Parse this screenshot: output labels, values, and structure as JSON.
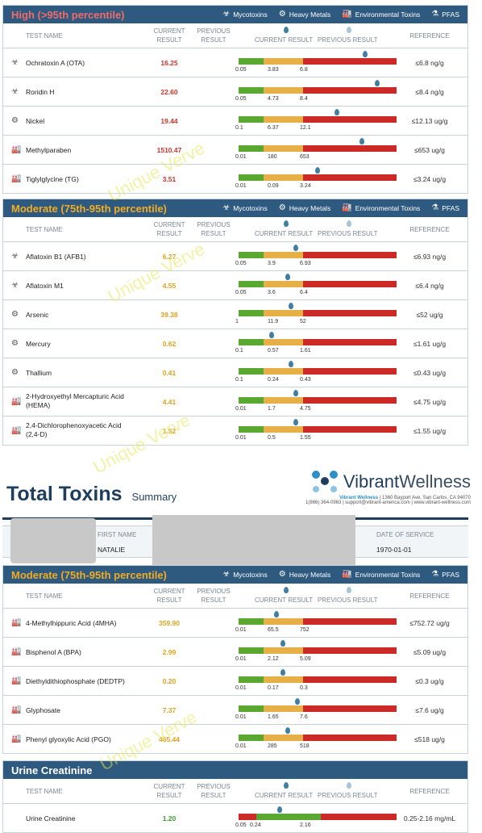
{
  "columns": {
    "test_name": "TEST NAME",
    "current_result_l1": "CURRENT",
    "current_result_l2": "RESULT",
    "previous_result_l1": "PREVIOUS",
    "previous_result_l2": "RESULT",
    "current_result": "CURRENT RESULT",
    "previous_result": "PREVIOUS RESULT",
    "reference": "REFERENCE"
  },
  "legend": {
    "mycotoxins": "Mycotoxins",
    "heavy_metals": "Heavy Metals",
    "environmental_toxins": "Environmental Toxins",
    "pfas": "PFAS"
  },
  "colors": {
    "band": "#2e5a80",
    "high_title": "#f05a5a",
    "moderate_title": "#f0a81c",
    "green": "#5aa832",
    "yellow": "#e6b046",
    "red": "#cc2a26",
    "marker": "#3f7fa3"
  },
  "watermark": "Unique Verve",
  "sections": {
    "high": {
      "title": "High (>95th percentile)",
      "rows": [
        {
          "icon": "biohazard-icon",
          "name": "Ochratoxin A (OTA)",
          "value": "16.25",
          "ticks": [
            "0.05",
            "3.83",
            "6.8"
          ],
          "reference": "≤6.8 ng/g"
        },
        {
          "icon": "biohazard-icon",
          "name": "Roridin H",
          "value": "22.60",
          "ticks": [
            "0.05",
            "4.73",
            "8.4"
          ],
          "reference": "≤8.4 ng/g"
        },
        {
          "icon": "metal-icon",
          "name": "Nickel",
          "value": "19.44",
          "ticks": [
            "0.1",
            "6.37",
            "12.1"
          ],
          "reference": "≤12.13 ug/g"
        },
        {
          "icon": "factory-icon",
          "name": "Methylparaben",
          "value": "1510.47",
          "ticks": [
            "0.01",
            "180",
            "653"
          ],
          "reference": "≤653 ug/g"
        },
        {
          "icon": "factory-icon",
          "name": "Tiglylglycine (TG)",
          "value": "3.51",
          "ticks": [
            "0.01",
            "0.09",
            "3.24"
          ],
          "reference": "≤3.24 ug/g"
        }
      ]
    },
    "moderate1": {
      "title": "Moderate (75th-95th percentile)",
      "rows": [
        {
          "icon": "biohazard-icon",
          "name": "Aflatoxin B1 (AFB1)",
          "value": "6.27",
          "ticks": [
            "0.05",
            "3.9",
            "6.93"
          ],
          "reference": "≤6.93 ng/g"
        },
        {
          "icon": "biohazard-icon",
          "name": "Aflatoxin M1",
          "value": "4.55",
          "ticks": [
            "0.05",
            "3.6",
            "6.4"
          ],
          "reference": "≤6.4 ng/g"
        },
        {
          "icon": "metal-icon",
          "name": "Arsenic",
          "value": "39.38",
          "ticks": [
            "1",
            "11.9",
            "52"
          ],
          "reference": "≤52 ug/g"
        },
        {
          "icon": "metal-icon",
          "name": "Mercury",
          "value": "0.62",
          "ticks": [
            "0.1",
            "0.57",
            "1.61"
          ],
          "reference": "≤1.61 ug/g"
        },
        {
          "icon": "metal-icon",
          "name": "Thallium",
          "value": "0.41",
          "ticks": [
            "0.1",
            "0.24",
            "0.43"
          ],
          "reference": "≤0.43 ug/g"
        },
        {
          "icon": "factory-icon",
          "name": "2-Hydroxyethyl Mercapturic Acid",
          "name2": "(HEMA)",
          "value": "4.41",
          "ticks": [
            "0.01",
            "1.7",
            "4.75"
          ],
          "reference": "≤4.75 ug/g"
        },
        {
          "icon": "factory-icon",
          "name": "2,4-Dichlorophenoxyacetic Acid",
          "name2": "(2,4-D)",
          "value": "1.52",
          "ticks": [
            "0.01",
            "0.5",
            "1.55"
          ],
          "reference": "≤1.55 ug/g"
        }
      ]
    },
    "moderate2": {
      "title": "Moderate (75th-95th percentile)",
      "rows": [
        {
          "icon": "factory-icon",
          "name": "4-Methylhippuric Acid (4MHA)",
          "value": "359.90",
          "ticks": [
            "0.01",
            "65.5",
            "752"
          ],
          "reference": "≤752.72 ug/g"
        },
        {
          "icon": "factory-icon",
          "name": "Bisphenol A (BPA)",
          "value": "2.99",
          "ticks": [
            "0.01",
            "2.12",
            "5.09"
          ],
          "reference": "≤5.09 ug/g"
        },
        {
          "icon": "factory-icon",
          "name": "Diethyldithiophosphate (DEDTP)",
          "value": "0.20",
          "ticks": [
            "0.01",
            "0.17",
            "0.3"
          ],
          "reference": "≤0.3 ug/g"
        },
        {
          "icon": "factory-icon",
          "name": "Glyphosate",
          "value": "7.37",
          "ticks": [
            "0.01",
            "1.65",
            "7.6"
          ],
          "reference": "≤7.6 ug/g"
        },
        {
          "icon": "factory-icon",
          "name": "Phenyl glyoxylic Acid (PGO)",
          "value": "465.44",
          "ticks": [
            "0.01",
            "285",
            "518"
          ],
          "reference": "≤518 ug/g"
        }
      ]
    },
    "creatinine": {
      "title": "Urine Creatinine",
      "rows": [
        {
          "name": "Urine Creatinine",
          "value": "1.20",
          "ticks": [
            "0.05",
            "0.24",
            "2.16"
          ],
          "reference": "0.25-2.16 mg/mL"
        }
      ]
    }
  },
  "report": {
    "title": "Total Toxins",
    "subtitle": "Summary",
    "brand": "VibrantWellness",
    "brand_a": "Vibrant",
    "brand_b": "Wellness",
    "address_name": "Vibrant Wellness",
    "address": "| 1360 Bayport Ave, San Carlos, CA 94070",
    "contact": "1(866) 364-0963 | support@vibrant-america.com | www.vibrant-wellness.com",
    "first_name_label": "FIRST NAME",
    "first_name": "NATALIE",
    "dos_label": "DATE OF SERVICE",
    "dos": "1970-01-01"
  },
  "marker_levels": {
    "high": [
      0.8,
      0.88,
      0.62,
      0.78,
      0.5
    ],
    "moderate1": [
      0.36,
      0.31,
      0.33,
      0.21,
      0.33,
      0.36,
      0.36
    ],
    "moderate2": [
      0.24,
      0.28,
      0.28,
      0.37,
      0.31
    ],
    "creatinine": [
      0.26
    ]
  }
}
